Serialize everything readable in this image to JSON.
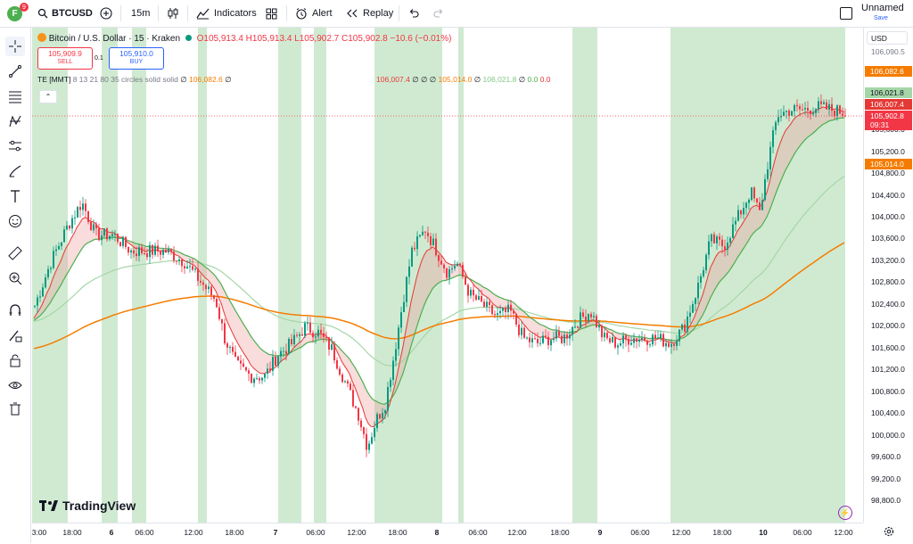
{
  "topbar": {
    "avatar_letter": "F",
    "notification_count": "9",
    "symbol": "BTCUSD",
    "interval": "15m",
    "indicators_label": "Indicators",
    "alert_label": "Alert",
    "replay_label": "Replay",
    "layout_name": "Unnamed",
    "save_label": "Save"
  },
  "legend": {
    "symbol_title": "Bitcoin / U.S. Dollar · 15 · Kraken",
    "o": "O105,913.4",
    "h": "H105,913.4",
    "l": "L105,902.7",
    "c": "C105,902.8",
    "chg": "−10.6 (−0.01%)",
    "sell_price": "105,909.9",
    "sell_label": "SELL",
    "spread": "0.1",
    "buy_price": "105,910.0",
    "buy_label": "BUY",
    "indicator_name": "TE [MMT]",
    "indicator_params": "8 13 21 80 35 circles solid solid",
    "ind_v0": "∅",
    "ind_v1": "106,082.6",
    "ind_v2": "∅",
    "ind_v3": "106,007.4",
    "ind_v4": "∅",
    "ind_v5": "∅",
    "ind_v6": "∅",
    "ind_v7": "105,014.0",
    "ind_v8": "∅",
    "ind_v9": "106,021.8",
    "ind_v10": "∅",
    "ind_v11": "0.0",
    "ind_v12": "0.0"
  },
  "price_axis": {
    "currency": "USD",
    "labels": [
      "106,082.6",
      "105,600.0",
      "105,200.0",
      "104,800.0",
      "104,400.0",
      "104,000.0",
      "103,600.0",
      "103,200.0",
      "102,800.0",
      "102,400.0",
      "102,000.0",
      "101,600.0",
      "101,200.0",
      "100,800.0",
      "100,400.0",
      "100,000.0",
      "99,600.0",
      "99,200.0",
      "98,800.0"
    ],
    "tag_orange_top": "106,082.6",
    "tag_green": "106,021.8",
    "tag_red": "106,007.4",
    "tag_last": "105,902.8",
    "tag_countdown": "09:31",
    "tag_orange_bottom": "105,014.0",
    "top_partial": "106,090.5"
  },
  "time_axis": {
    "labels": [
      "3:00",
      "18:00",
      "6",
      "06:00",
      "12:00",
      "18:00",
      "7",
      "06:00",
      "12:00",
      "18:00",
      "8",
      "06:00",
      "12:00",
      "18:00",
      "9",
      "06:00",
      "12:00",
      "18:00",
      "10",
      "06:00",
      "12:00"
    ]
  },
  "watermark": "TradingView",
  "colors": {
    "up": "#089981",
    "down": "#f23645",
    "bg_band": "#c8e6c9",
    "ema_orange": "#f57c00",
    "ema_green": "#4caf50",
    "ema_red": "#e53935"
  }
}
